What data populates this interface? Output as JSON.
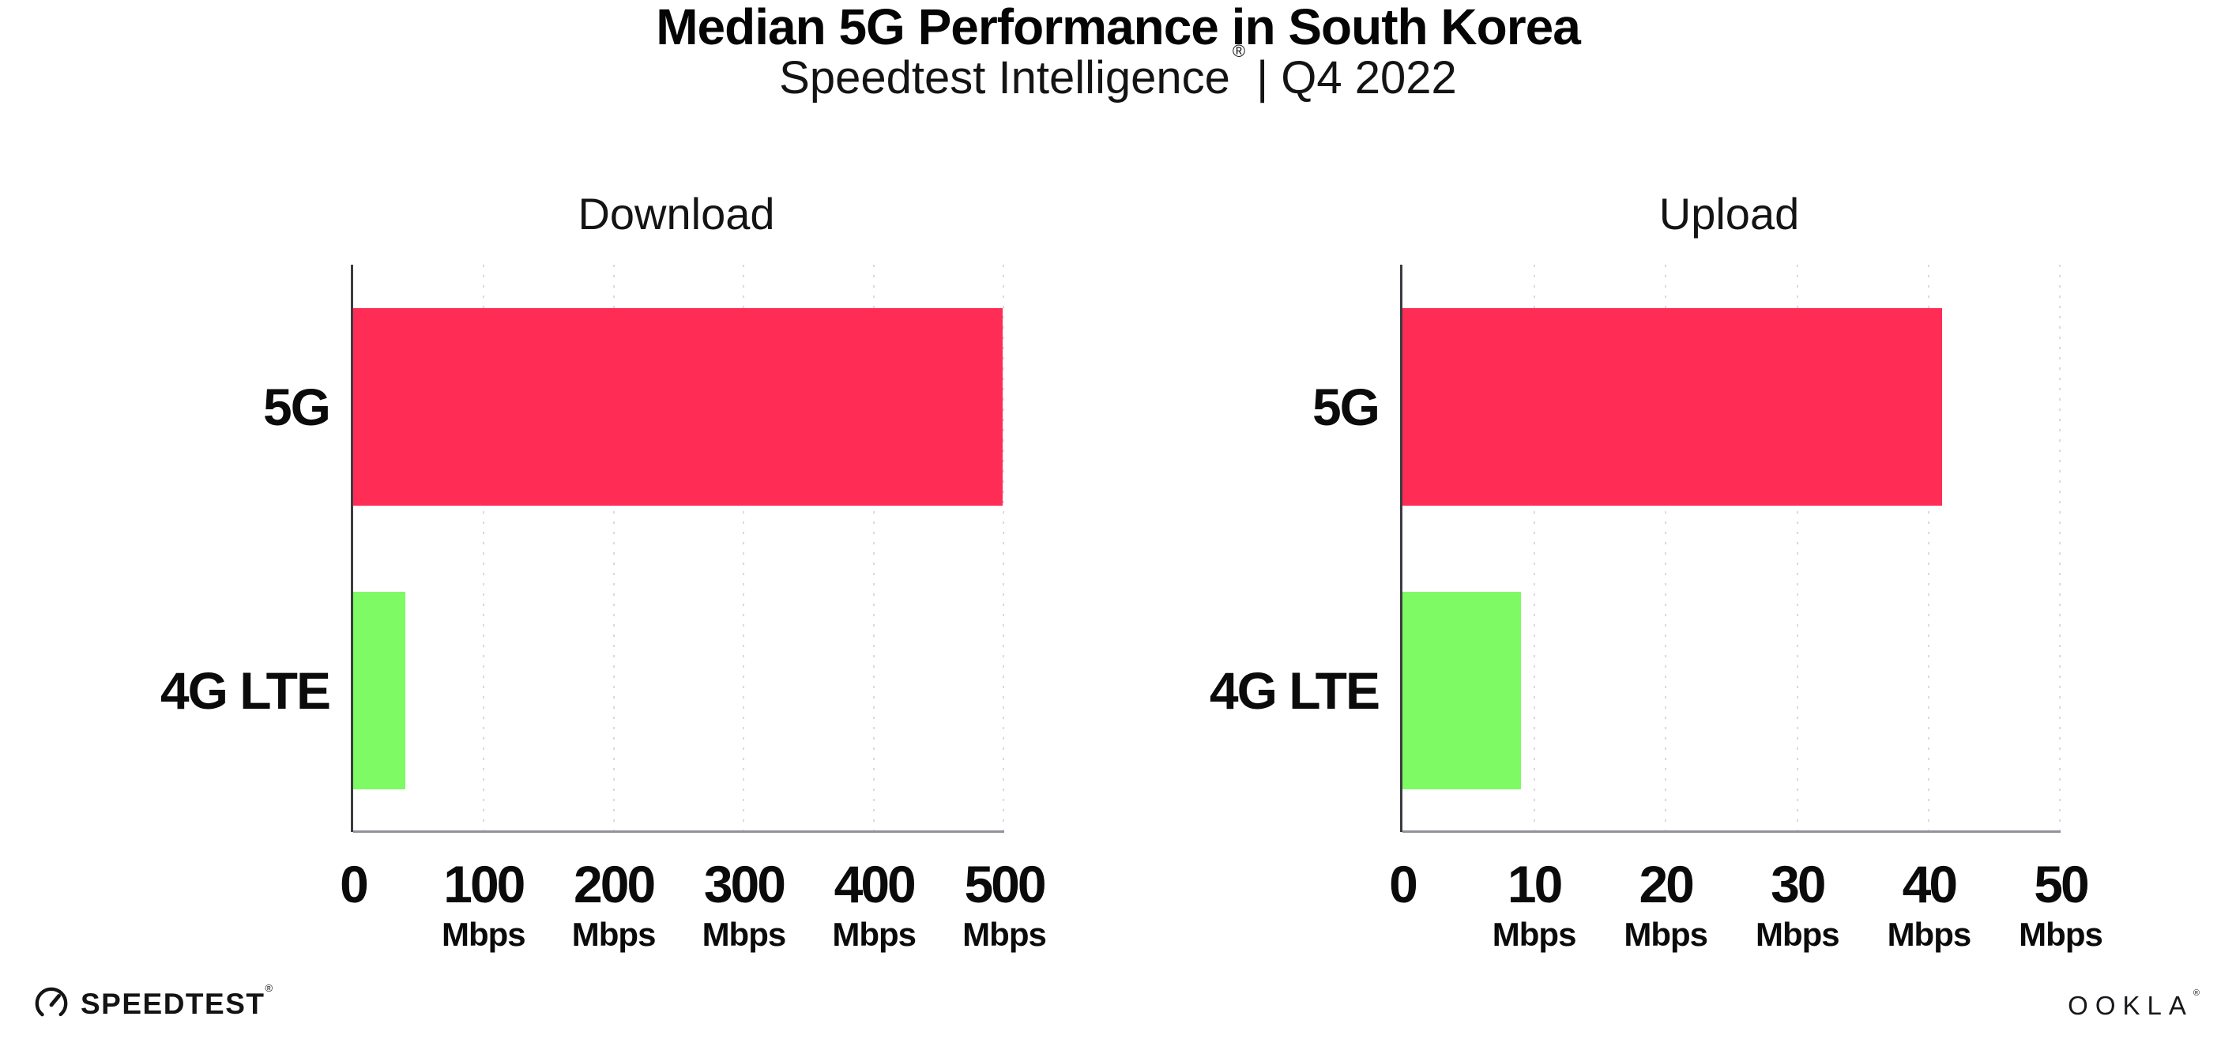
{
  "header": {
    "title": "Median 5G Performance in South Korea",
    "subtitle_brand": "Speedtest Intelligence",
    "subtitle_reg": "®",
    "subtitle_rest": "| Q4 2022"
  },
  "colors": {
    "bar_5g": "#FF2D55",
    "bar_4g_lte": "#7DFA64",
    "gridline": "#D9DAE3",
    "left_spine": "#3B3C42",
    "baseline": "#92939B",
    "text": "#0B0B0B"
  },
  "chart_data": [
    {
      "type": "bar",
      "orientation": "horizontal",
      "title": "Download",
      "categories": [
        "5G",
        "4G LTE"
      ],
      "values": [
        499,
        40
      ],
      "unit": "Mbps",
      "xlabel": "",
      "ylabel": "",
      "xlim": [
        0,
        500
      ],
      "xticks": [
        0,
        100,
        200,
        300,
        400,
        500
      ],
      "bar_colors": [
        "#FF2D55",
        "#7DFA64"
      ],
      "grid": "vertical-dotted",
      "legend": "none"
    },
    {
      "type": "bar",
      "orientation": "horizontal",
      "title": "Upload",
      "categories": [
        "5G",
        "4G LTE"
      ],
      "values": [
        41,
        9
      ],
      "unit": "Mbps",
      "xlabel": "",
      "ylabel": "",
      "xlim": [
        0,
        50
      ],
      "xticks": [
        0,
        10,
        20,
        30,
        40,
        50
      ],
      "bar_colors": [
        "#FF2D55",
        "#7DFA64"
      ],
      "grid": "vertical-dotted",
      "legend": "none"
    }
  ],
  "footer": {
    "speedtest_label": "SPEEDTEST",
    "speedtest_mark": "®",
    "ookla_label": "OOKLA",
    "ookla_mark": "®"
  }
}
